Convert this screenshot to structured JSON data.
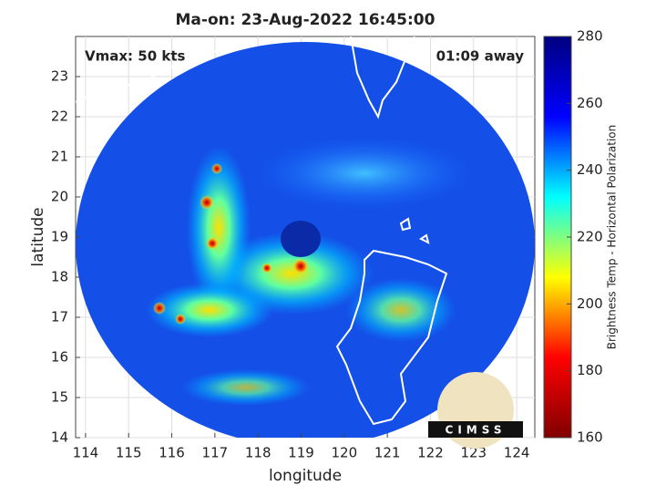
{
  "chart_data": {
    "type": "image",
    "title": "Ma-on: 23-Aug-2022 16:45:00",
    "annotations": [
      "Vmax: 50 kts",
      "01:09 away"
    ],
    "xlabel": "longitude",
    "ylabel": "latitude",
    "xlim": [
      113.77,
      124.42
    ],
    "ylim": [
      14,
      24
    ],
    "xticks": [
      114,
      115,
      116,
      117,
      118,
      119,
      120,
      121,
      122,
      123,
      124
    ],
    "yticks": [
      14,
      15,
      16,
      17,
      18,
      19,
      20,
      21,
      22,
      23
    ],
    "grid": true,
    "colorbar": {
      "label": "Brightness Temp - Horizontal Polarization",
      "lim": [
        160,
        280
      ],
      "ticks": [
        160,
        180,
        200,
        220,
        240,
        260,
        280
      ],
      "colormap": "jet"
    },
    "logo": "CIMSS"
  }
}
